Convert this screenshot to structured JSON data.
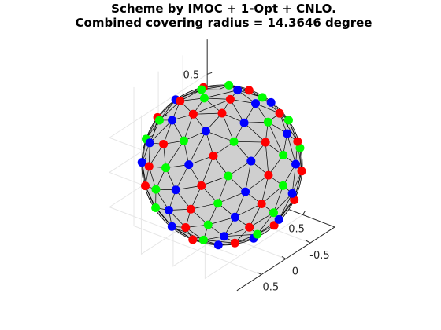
{
  "figure": {
    "title_line1": "Scheme by IMOC + 1-Opt + CNLO.",
    "title_line2": "Combined covering radius = 14.3646 degree"
  },
  "chart_data": {
    "type": "scatter3d",
    "title": "Scheme by IMOC + 1-Opt + CNLO.",
    "subtitle": "Combined covering radius = 14.3646 degree",
    "xlabel": "",
    "ylabel": "",
    "zlabel": "",
    "xlim": [
      -1,
      1
    ],
    "ylim": [
      -1,
      1
    ],
    "zlim": [
      -1,
      1
    ],
    "grid": true,
    "legend": "none",
    "view": {
      "azimuth": -37.5,
      "elevation": 30
    },
    "x_ticks": [
      "-0.5",
      "0",
      "0.5"
    ],
    "y_ticks": [
      "-0.5",
      "0",
      "0.5"
    ],
    "z_ticks": [
      "-0.5",
      "0",
      "0.5"
    ],
    "x_tick_values": [
      -0.5,
      0,
      0.5
    ],
    "y_tick_values": [
      -0.5,
      0,
      0.5
    ],
    "z_tick_values": [
      -0.5,
      0,
      0.5
    ],
    "surface": {
      "shape": "unit sphere (convex hull mesh)",
      "color": "#cfcfcf"
    },
    "series": [
      {
        "color": "#ff0000",
        "count": 40
      },
      {
        "color": "#00ff00",
        "count": 40
      },
      {
        "color": "#0000ff",
        "count": 40
      }
    ],
    "colors": {
      "series_1": "#ff0000",
      "series_2": "#00ff00",
      "series_3": "#0000ff",
      "mesh_edge": "#000000",
      "grid": "#e6e6e6",
      "axis": "#262626"
    }
  }
}
